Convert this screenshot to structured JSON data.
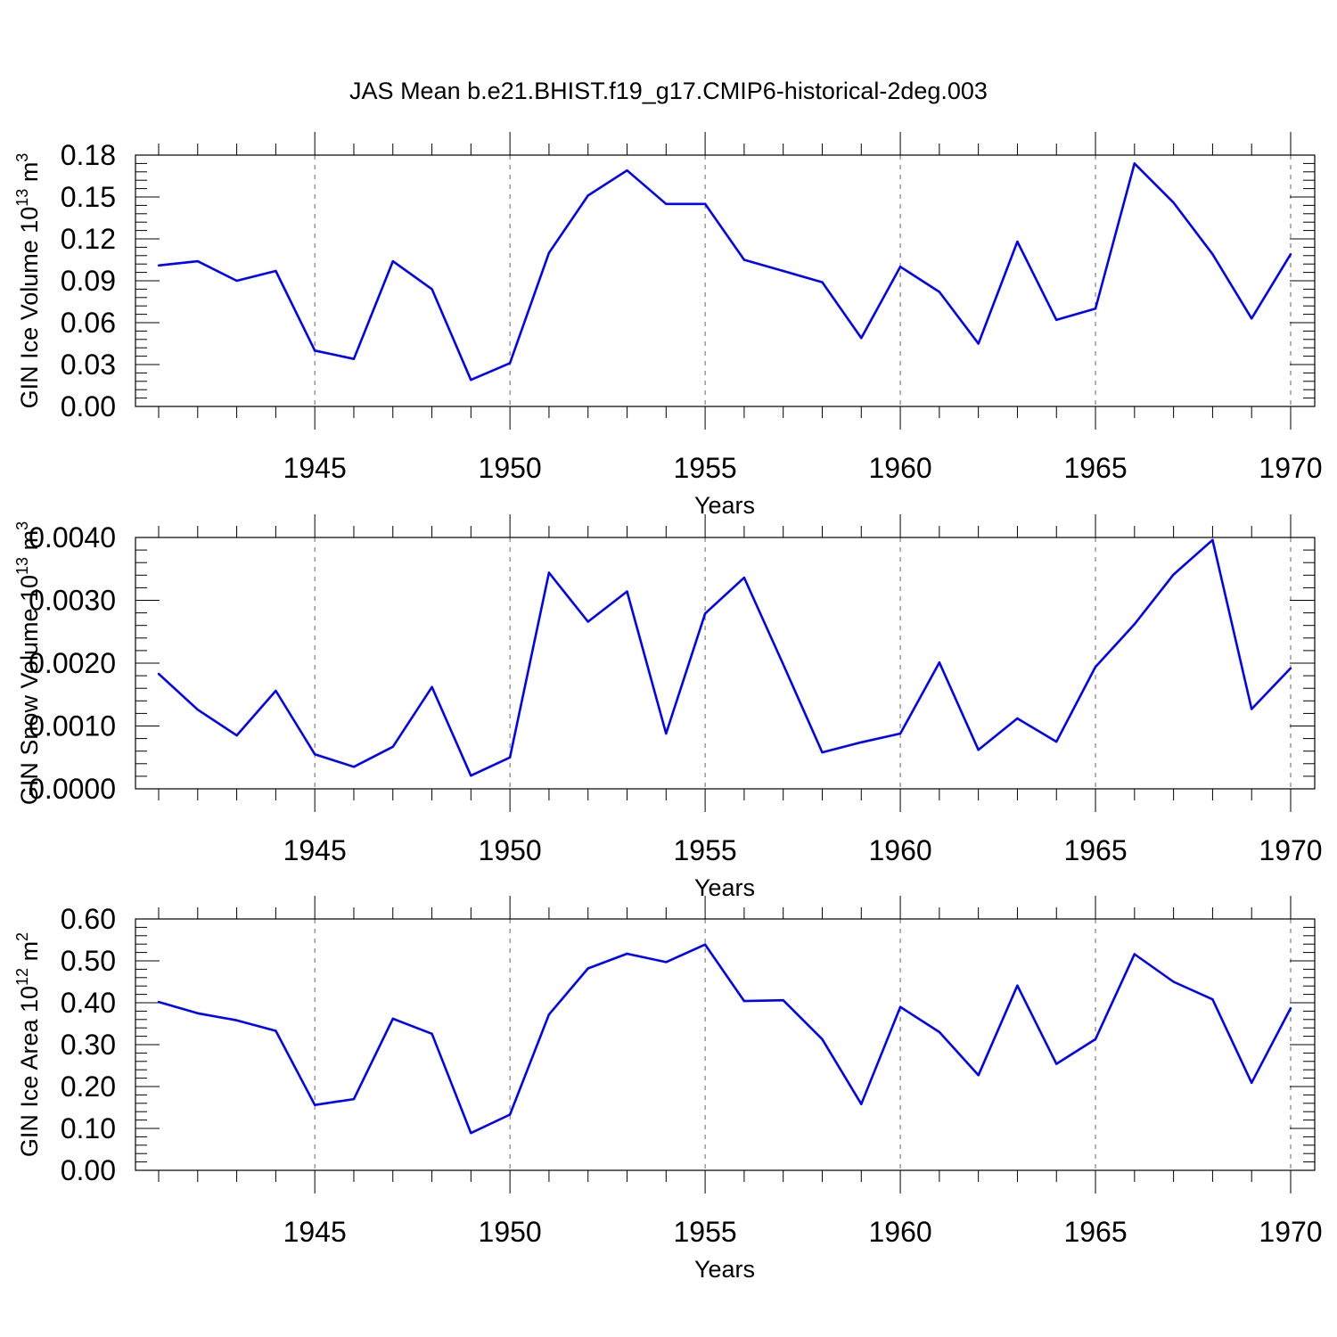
{
  "title": "JAS Mean b.e21.BHIST.f19_g17.CMIP6-historical-2deg.003",
  "line_color": "#0000ff",
  "chart_data": [
    {
      "type": "line",
      "ylabel": "GIN Ice Volume 10",
      "ylabel_exp": "13",
      "ylabel_unit": " m",
      "ylabel_unit_exp": "3",
      "xlabel": "Years",
      "xlim": [
        1941,
        1970
      ],
      "ylim": [
        0,
        0.18
      ],
      "yticks": [
        0,
        0.03,
        0.06,
        0.09,
        0.12,
        0.15,
        0.18
      ],
      "ytick_labels": [
        "0.00",
        "0.03",
        "0.06",
        "0.09",
        "0.12",
        "0.15",
        "0.18"
      ],
      "xticks": [
        1945,
        1950,
        1955,
        1960,
        1965,
        1970
      ],
      "xtick_labels": [
        "1945",
        "1950",
        "1955",
        "1960",
        "1965",
        "1970"
      ],
      "grid": "vertical dashed at major x ticks",
      "x": [
        1941,
        1942,
        1943,
        1944,
        1945,
        1946,
        1947,
        1948,
        1949,
        1950,
        1951,
        1952,
        1953,
        1954,
        1955,
        1956,
        1957,
        1958,
        1959,
        1960,
        1961,
        1962,
        1963,
        1964,
        1965,
        1966,
        1967,
        1968,
        1969,
        1970
      ],
      "values": [
        0.101,
        0.104,
        0.09,
        0.097,
        0.04,
        0.034,
        0.104,
        0.084,
        0.019,
        0.031,
        0.11,
        0.151,
        0.169,
        0.145,
        0.145,
        0.105,
        0.097,
        0.089,
        0.049,
        0.1,
        0.082,
        0.045,
        0.118,
        0.062,
        0.07,
        0.174,
        0.146,
        0.109,
        0.063,
        0.109
      ]
    },
    {
      "type": "line",
      "ylabel": "GIN Snow Volume 10",
      "ylabel_exp": "13",
      "ylabel_unit": " m",
      "ylabel_unit_exp": "3",
      "xlabel": "Years",
      "xlim": [
        1941,
        1970
      ],
      "ylim": [
        0,
        0.004
      ],
      "yticks": [
        0,
        0.001,
        0.002,
        0.003,
        0.004
      ],
      "ytick_labels": [
        "0.0000",
        "0.0010",
        "0.0020",
        "0.0030",
        "0.0040"
      ],
      "xticks": [
        1945,
        1950,
        1955,
        1960,
        1965,
        1970
      ],
      "xtick_labels": [
        "1945",
        "1950",
        "1955",
        "1960",
        "1965",
        "1970"
      ],
      "grid": "vertical dashed at major x ticks",
      "x": [
        1941,
        1942,
        1943,
        1944,
        1945,
        1946,
        1947,
        1948,
        1949,
        1950,
        1951,
        1952,
        1953,
        1954,
        1955,
        1956,
        1957,
        1958,
        1959,
        1960,
        1961,
        1962,
        1963,
        1964,
        1965,
        1966,
        1967,
        1968,
        1969,
        1970
      ],
      "values": [
        0.00183,
        0.00126,
        0.00085,
        0.00156,
        0.00055,
        0.00035,
        0.00067,
        0.00162,
        0.00021,
        0.0005,
        0.00344,
        0.00266,
        0.00314,
        0.00088,
        0.00279,
        0.00336,
        0.00198,
        0.00058,
        0.00074,
        0.00088,
        0.00201,
        0.00062,
        0.00112,
        0.00075,
        0.00194,
        0.00262,
        0.00341,
        0.00396,
        0.00127,
        0.00192
      ]
    },
    {
      "type": "line",
      "ylabel": "GIN Ice Area 10",
      "ylabel_exp": "12",
      "ylabel_unit": " m",
      "ylabel_unit_exp": "2",
      "xlabel": "Years",
      "xlim": [
        1941,
        1970
      ],
      "ylim": [
        0,
        0.6
      ],
      "yticks": [
        0,
        0.1,
        0.2,
        0.3,
        0.4,
        0.5,
        0.6
      ],
      "ytick_labels": [
        "0.00",
        "0.10",
        "0.20",
        "0.30",
        "0.40",
        "0.50",
        "0.60"
      ],
      "xticks": [
        1945,
        1950,
        1955,
        1960,
        1965,
        1970
      ],
      "xtick_labels": [
        "1945",
        "1950",
        "1955",
        "1960",
        "1965",
        "1970"
      ],
      "grid": "vertical dashed at major x ticks",
      "x": [
        1941,
        1942,
        1943,
        1944,
        1945,
        1946,
        1947,
        1948,
        1949,
        1950,
        1951,
        1952,
        1953,
        1954,
        1955,
        1956,
        1957,
        1958,
        1959,
        1960,
        1961,
        1962,
        1963,
        1964,
        1965,
        1966,
        1967,
        1968,
        1969,
        1970
      ],
      "values": [
        0.402,
        0.375,
        0.358,
        0.333,
        0.156,
        0.17,
        0.362,
        0.326,
        0.089,
        0.133,
        0.372,
        0.482,
        0.517,
        0.497,
        0.539,
        0.404,
        0.406,
        0.313,
        0.158,
        0.39,
        0.33,
        0.227,
        0.441,
        0.254,
        0.313,
        0.516,
        0.45,
        0.408,
        0.209,
        0.387
      ]
    }
  ]
}
